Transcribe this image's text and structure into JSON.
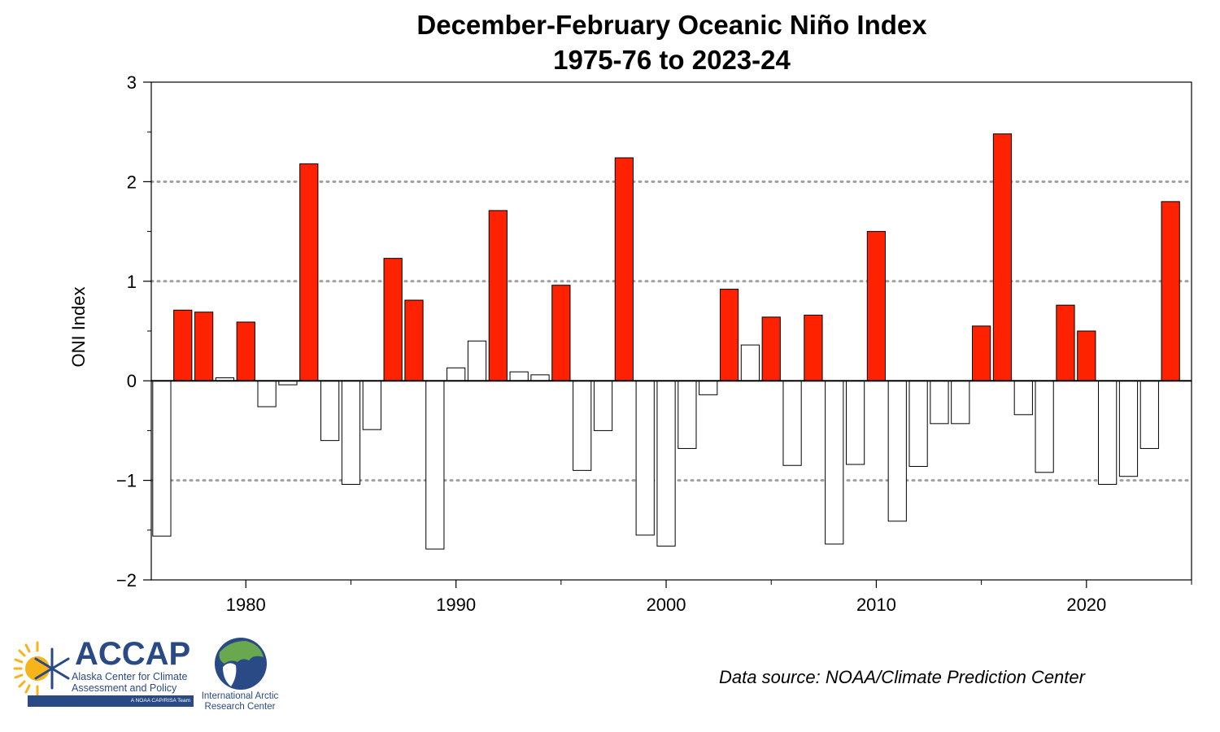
{
  "chart_data": {
    "type": "bar",
    "title": "December-February Oceanic Niño Index",
    "subtitle": "1975-76 to 2023-24",
    "xlabel": "",
    "ylabel": "ONI Index",
    "ylim": [
      -2,
      3
    ],
    "xlim": [
      1975.5,
      2025
    ],
    "yticks": [
      "−2",
      "−1",
      "0",
      "1",
      "2",
      "3"
    ],
    "xticks": [
      "1980",
      "1990",
      "2000",
      "2010",
      "2020"
    ],
    "grid": "dotted horizontal lines at -1, 1, 2",
    "x": [
      1976,
      1977,
      1978,
      1979,
      1980,
      1981,
      1982,
      1983,
      1984,
      1985,
      1986,
      1987,
      1988,
      1989,
      1990,
      1991,
      1992,
      1993,
      1994,
      1995,
      1996,
      1997,
      1998,
      1999,
      2000,
      2001,
      2002,
      2003,
      2004,
      2005,
      2006,
      2007,
      2008,
      2009,
      2010,
      2011,
      2012,
      2013,
      2014,
      2015,
      2016,
      2017,
      2018,
      2019,
      2020,
      2021,
      2022,
      2023,
      2024
    ],
    "values": [
      -1.56,
      0.71,
      0.69,
      0.03,
      0.59,
      -0.26,
      -0.04,
      2.18,
      -0.6,
      -1.04,
      -0.49,
      1.23,
      0.81,
      -1.69,
      0.13,
      0.4,
      1.71,
      0.09,
      0.06,
      0.96,
      -0.9,
      -0.5,
      2.24,
      -1.55,
      -1.66,
      -0.68,
      -0.14,
      0.92,
      0.36,
      0.64,
      -0.85,
      0.66,
      -1.64,
      -0.84,
      1.5,
      -1.41,
      -0.86,
      -0.43,
      -0.43,
      0.55,
      2.48,
      -0.34,
      -0.92,
      0.76,
      0.5,
      -1.04,
      -0.96,
      -0.68,
      1.8
    ],
    "colors": {
      "el_nino": "#ff2200",
      "other": "#ffffff",
      "outline": "#000000",
      "grid": "#a0a0a0"
    },
    "el_nino_threshold": 0.5
  },
  "footer": {
    "source": "Data source: NOAA/Climate Prediction Center",
    "accap_name": "ACCAP",
    "accap_line1": "Alaska Center for Climate",
    "accap_line2": "Assessment and Policy",
    "accap_tag": "A NOAA CAP/RISA Team",
    "iarc_line1": "International Arctic",
    "iarc_line2": "Research Center"
  }
}
